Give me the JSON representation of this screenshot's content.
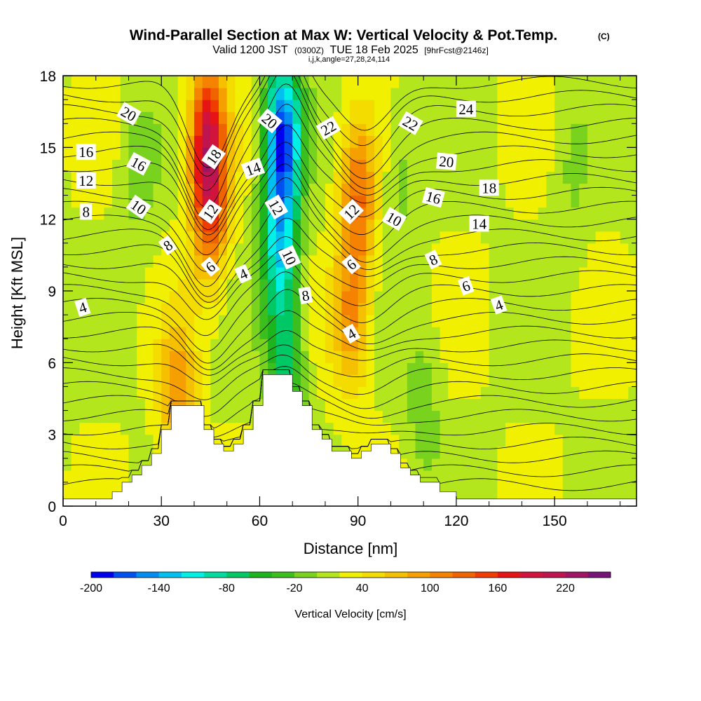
{
  "chart_data": {
    "type": "heatmap",
    "title": "Wind-Parallel Section at Max W: Vertical Velocity & Pot.Temp.",
    "title_mark": "(C)",
    "subtitle_valid": "Valid 1200 JST",
    "subtitle_utc": "(0300Z)",
    "subtitle_date": "TUE 18 Feb 2025",
    "subtitle_fcst": "[9hrFcst@2146z]",
    "subtitle_indices": "i,j,k,angle=27,28,24,114",
    "xlabel": "Distance [nm]",
    "ylabel": "Height [Kft MSL]",
    "xlim": [
      0,
      175
    ],
    "ylim": [
      0,
      18
    ],
    "x_ticks": [
      "0",
      "30",
      "60",
      "90",
      "120",
      "150"
    ],
    "x_tick_values": [
      0,
      30,
      60,
      90,
      120,
      150
    ],
    "y_ticks": [
      "0",
      "3",
      "6",
      "9",
      "12",
      "15",
      "18"
    ],
    "y_tick_values": [
      0,
      3,
      6,
      9,
      12,
      15,
      18
    ],
    "colorbar": {
      "label": "Vertical Velocity [cm/s]",
      "min": -200,
      "max": 260,
      "step": 20,
      "tick_labels": [
        "-200",
        "-140",
        "-80",
        "-20",
        "40",
        "100",
        "160",
        "220"
      ],
      "tick_values": [
        -200,
        -140,
        -80,
        -20,
        40,
        100,
        160,
        220
      ],
      "colors": [
        "#0000f0",
        "#0050f0",
        "#008cf0",
        "#00c0f0",
        "#00f0e6",
        "#00dca0",
        "#00c864",
        "#1eb41e",
        "#3cbe1e",
        "#78d21e",
        "#b4e61e",
        "#f0f000",
        "#f5dc00",
        "#f5c000",
        "#f5a000",
        "#f58200",
        "#f06400",
        "#f03c00",
        "#e61414",
        "#d2143c",
        "#be1450",
        "#a01464",
        "#781478"
      ]
    },
    "terrain_kft": [
      [
        0,
        0.3
      ],
      [
        15,
        0.3
      ],
      [
        15,
        0.6
      ],
      [
        18,
        0.6
      ],
      [
        18,
        1.0
      ],
      [
        21,
        1.0
      ],
      [
        21,
        1.3
      ],
      [
        24,
        1.3
      ],
      [
        24,
        1.7
      ],
      [
        27,
        1.7
      ],
      [
        27,
        2.2
      ],
      [
        30,
        2.2
      ],
      [
        30,
        3.2
      ],
      [
        33,
        3.2
      ],
      [
        33,
        4.2
      ],
      [
        43,
        4.2
      ],
      [
        43,
        3.2
      ],
      [
        46,
        3.2
      ],
      [
        46,
        2.6
      ],
      [
        49,
        2.6
      ],
      [
        49,
        2.3
      ],
      [
        52,
        2.3
      ],
      [
        52,
        2.6
      ],
      [
        55,
        2.6
      ],
      [
        55,
        3.2
      ],
      [
        58,
        3.2
      ],
      [
        58,
        4.2
      ],
      [
        61,
        4.2
      ],
      [
        61,
        5.5
      ],
      [
        70,
        5.5
      ],
      [
        70,
        4.8
      ],
      [
        73,
        4.8
      ],
      [
        73,
        4.2
      ],
      [
        76,
        4.2
      ],
      [
        76,
        3.2
      ],
      [
        79,
        3.2
      ],
      [
        79,
        2.8
      ],
      [
        82,
        2.8
      ],
      [
        82,
        2.3
      ],
      [
        88,
        2.3
      ],
      [
        88,
        2.0
      ],
      [
        91,
        2.0
      ],
      [
        91,
        2.3
      ],
      [
        94,
        2.3
      ],
      [
        94,
        2.6
      ],
      [
        100,
        2.6
      ],
      [
        100,
        2.2
      ],
      [
        103,
        2.2
      ],
      [
        103,
        1.6
      ],
      [
        106,
        1.6
      ],
      [
        106,
        1.3
      ],
      [
        109,
        1.3
      ],
      [
        109,
        1.0
      ],
      [
        115,
        1.0
      ],
      [
        115,
        0.6
      ],
      [
        120,
        0.6
      ],
      [
        120,
        0.3
      ],
      [
        175,
        0.3
      ]
    ],
    "vertical_velocity_anomalies_cm_s": [
      {
        "x": 44,
        "z": 15.5,
        "w": 150
      },
      {
        "x": 45,
        "z": 12.5,
        "w": 110
      },
      {
        "x": 35,
        "z": 4.5,
        "w": 80
      },
      {
        "x": 67,
        "z": 15.5,
        "w": -190
      },
      {
        "x": 66,
        "z": 11,
        "w": -120
      },
      {
        "x": 68,
        "z": 6,
        "w": -80
      },
      {
        "x": 90,
        "z": 13,
        "w": 100
      },
      {
        "x": 88,
        "z": 8,
        "w": 80
      },
      {
        "x": 23,
        "z": 14,
        "w": -30
      },
      {
        "x": 103,
        "z": 14,
        "w": -30
      },
      {
        "x": 155,
        "z": 14,
        "w": -20
      },
      {
        "x": 110,
        "z": 4,
        "w": -30
      }
    ],
    "contour_labels": [
      {
        "label": "20",
        "x": 20,
        "z": 16.4,
        "angle": 30
      },
      {
        "label": "16",
        "x": 7,
        "z": 14.8,
        "angle": 0
      },
      {
        "label": "12",
        "x": 7,
        "z": 13.6,
        "angle": 0
      },
      {
        "label": "8",
        "x": 7,
        "z": 12.3,
        "angle": 0
      },
      {
        "label": "16",
        "x": 23,
        "z": 14.3,
        "angle": 28
      },
      {
        "label": "10",
        "x": 23,
        "z": 12.5,
        "angle": 35
      },
      {
        "label": "8",
        "x": 32,
        "z": 10.9,
        "angle": -35
      },
      {
        "label": "4",
        "x": 6,
        "z": 8.3,
        "angle": -18
      },
      {
        "label": "18",
        "x": 46,
        "z": 14.6,
        "angle": -55
      },
      {
        "label": "12",
        "x": 45,
        "z": 12.3,
        "angle": -55
      },
      {
        "label": "6",
        "x": 45,
        "z": 10.0,
        "angle": -40
      },
      {
        "label": "4",
        "x": 55,
        "z": 9.7,
        "angle": -25
      },
      {
        "label": "14",
        "x": 58,
        "z": 14.1,
        "angle": -20
      },
      {
        "label": "20",
        "x": 63,
        "z": 16.1,
        "angle": 40
      },
      {
        "label": "12",
        "x": 65,
        "z": 12.5,
        "angle": 60
      },
      {
        "label": "10",
        "x": 69,
        "z": 10.4,
        "angle": 65
      },
      {
        "label": "8",
        "x": 74,
        "z": 8.8,
        "angle": -10
      },
      {
        "label": "22",
        "x": 81,
        "z": 15.8,
        "angle": -30
      },
      {
        "label": "12",
        "x": 88,
        "z": 12.3,
        "angle": -45
      },
      {
        "label": "6",
        "x": 88,
        "z": 10.1,
        "angle": -40
      },
      {
        "label": "4",
        "x": 88,
        "z": 7.2,
        "angle": -30
      },
      {
        "label": "10",
        "x": 101,
        "z": 12.0,
        "angle": 30
      },
      {
        "label": "22",
        "x": 106,
        "z": 16.0,
        "angle": 30
      },
      {
        "label": "16",
        "x": 113,
        "z": 12.9,
        "angle": 15
      },
      {
        "label": "8",
        "x": 113,
        "z": 10.3,
        "angle": -25
      },
      {
        "label": "24",
        "x": 123,
        "z": 16.6,
        "angle": 0
      },
      {
        "label": "20",
        "x": 117,
        "z": 14.4,
        "angle": 5
      },
      {
        "label": "6",
        "x": 123,
        "z": 9.2,
        "angle": -20
      },
      {
        "label": "18",
        "x": 130,
        "z": 13.3,
        "angle": 0
      },
      {
        "label": "14",
        "x": 127,
        "z": 11.8,
        "angle": 0
      },
      {
        "label": "4",
        "x": 133,
        "z": 8.4,
        "angle": -20
      }
    ],
    "grid": false
  }
}
